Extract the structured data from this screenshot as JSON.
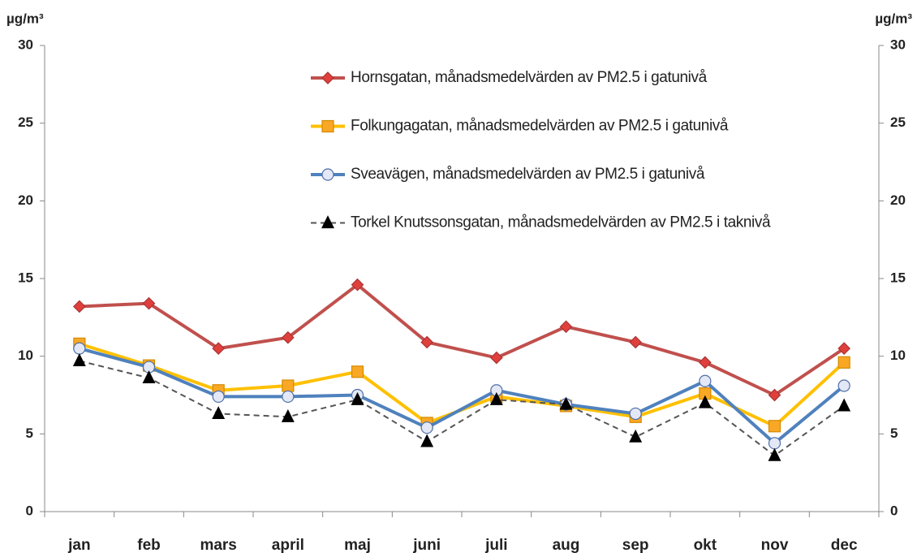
{
  "chart_data": {
    "type": "line",
    "ylabel": "µg/m³",
    "y2label": "µg/m³",
    "categories": [
      "jan",
      "feb",
      "mars",
      "april",
      "maj",
      "juni",
      "juli",
      "aug",
      "sep",
      "okt",
      "nov",
      "dec"
    ],
    "series": [
      {
        "name": "Hornsgatan, månadsmedelvärden av PM2.5 i gatunivå",
        "color": "#c0504d",
        "marker": "diamond",
        "marker_fill": "#e0403c",
        "values": [
          13.2,
          13.4,
          10.5,
          11.2,
          14.6,
          10.9,
          9.9,
          11.9,
          10.9,
          9.6,
          7.5,
          10.5
        ]
      },
      {
        "name": "Folkungagatan, månadsmedelvärden av PM2.5 i gatunivå",
        "color": "#ffc000",
        "marker": "square",
        "marker_fill": "#f9a825",
        "values": [
          10.8,
          9.4,
          7.8,
          8.1,
          9.0,
          5.7,
          7.4,
          6.8,
          6.1,
          7.6,
          5.5,
          9.6
        ]
      },
      {
        "name": "Sveavägen, månadsmedelvärden av PM2.5 i gatunivå",
        "color": "#4f81bd",
        "marker": "circle",
        "marker_fill": "#e4e8f6",
        "values": [
          10.5,
          9.3,
          7.4,
          7.4,
          7.5,
          5.4,
          7.8,
          6.9,
          6.3,
          8.4,
          4.4,
          8.1
        ]
      },
      {
        "name": "Torkel Knutssonsgatan, månadsmedelvärden av PM2.5 i taknivå",
        "color": "#555555",
        "marker": "triangle",
        "marker_fill": "#000000",
        "dashed": true,
        "values": [
          9.7,
          8.6,
          6.3,
          6.1,
          7.2,
          4.5,
          7.2,
          6.9,
          4.8,
          7.0,
          3.6,
          6.8
        ]
      }
    ],
    "ylim": [
      0,
      30
    ],
    "yticks": [
      0,
      5,
      10,
      15,
      20,
      25,
      30
    ],
    "y2lim": [
      0,
      30
    ],
    "y2ticks": [
      0,
      5,
      10,
      15,
      20,
      25,
      30
    ],
    "legend": "top-right"
  }
}
